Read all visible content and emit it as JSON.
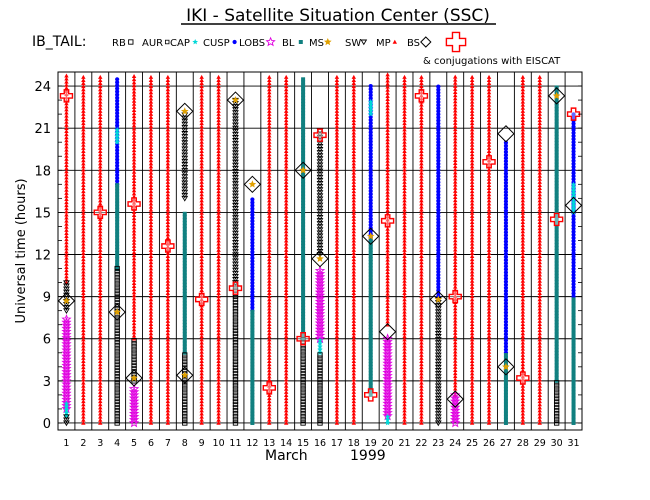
{
  "chart_data": {
    "type": "scatter",
    "title": "IKI - Satellite Situation Center (SSC)",
    "spacecraft": "IB_TAIL:",
    "conjugation_note": "& conjugations with EISCAT",
    "xlabel_month": "March",
    "xlabel_year": "1999",
    "ylabel": "Universal time (hours)",
    "xlim": [
      0.5,
      31.5
    ],
    "ylim": [
      -0.5,
      25
    ],
    "x_ticks": [
      1,
      2,
      3,
      4,
      5,
      6,
      7,
      8,
      9,
      10,
      11,
      12,
      13,
      14,
      15,
      16,
      17,
      18,
      19,
      20,
      21,
      22,
      23,
      24,
      25,
      26,
      27,
      28,
      29,
      30,
      31
    ],
    "y_ticks": [
      0,
      3,
      6,
      9,
      12,
      15,
      18,
      21,
      24
    ],
    "grid": true,
    "legend_position": "top",
    "legend": [
      {
        "key": "RB",
        "label": "RB",
        "color": "#000000",
        "marker": "square-open"
      },
      {
        "key": "AUR",
        "label": "AUR",
        "color": "#000000",
        "marker": "square-open-small"
      },
      {
        "key": "CAP",
        "label": "CAP",
        "color": "#00d8d8",
        "marker": "star"
      },
      {
        "key": "CUSP",
        "label": "CUSP",
        "color": "#0000ff",
        "marker": "dot"
      },
      {
        "key": "LOBS",
        "label": "LOBS",
        "color": "#e000e0",
        "marker": "star-open"
      },
      {
        "key": "BL",
        "label": "BL",
        "color": "#108080",
        "marker": "square-filled"
      },
      {
        "key": "MS",
        "label": "MS",
        "color": "#e0a000",
        "marker": "diamond-star"
      },
      {
        "key": "SW",
        "label": "SW",
        "color": "#000000",
        "marker": "triangle-open"
      },
      {
        "key": "MP",
        "label": "MP",
        "color": "#ff0000",
        "marker": "triangle-filled"
      },
      {
        "key": "BS",
        "label": "BS",
        "color": "#000000",
        "marker": "diamond-open"
      },
      {
        "key": "CONJ",
        "label": "",
        "color": "#ff0000",
        "marker": "cross-open"
      }
    ],
    "segments": [
      {
        "day": 1,
        "spans": [
          [
            "MP",
            10,
            25
          ],
          [
            "SW",
            8,
            10
          ],
          [
            "LOBS",
            1,
            7.5
          ],
          [
            "CAP",
            0.5,
            1.5
          ],
          [
            "SW",
            0,
            0.5
          ]
        ]
      },
      {
        "day": 2,
        "spans": [
          [
            "MP",
            0,
            25
          ]
        ]
      },
      {
        "day": 3,
        "spans": [
          [
            "MP",
            0,
            25
          ]
        ]
      },
      {
        "day": 4,
        "spans": [
          [
            "CUSP",
            17,
            24.5
          ],
          [
            "CAP",
            20,
            21
          ],
          [
            "BL",
            11,
            17
          ],
          [
            "RB",
            0,
            11
          ]
        ]
      },
      {
        "day": 5,
        "spans": [
          [
            "MP",
            6,
            25
          ],
          [
            "RB",
            3,
            6
          ],
          [
            "LOBS",
            0,
            2.5
          ]
        ]
      },
      {
        "day": 6,
        "spans": [
          [
            "MP",
            0,
            25
          ]
        ]
      },
      {
        "day": 7,
        "spans": [
          [
            "MP",
            0,
            25
          ]
        ]
      },
      {
        "day": 8,
        "spans": [
          [
            "SW",
            16,
            22
          ],
          [
            "BL",
            5,
            15
          ],
          [
            "RB",
            0,
            5
          ]
        ]
      },
      {
        "day": 9,
        "spans": [
          [
            "MP",
            0,
            25
          ]
        ]
      },
      {
        "day": 10,
        "spans": [
          [
            "MP",
            0,
            25
          ]
        ]
      },
      {
        "day": 11,
        "spans": [
          [
            "SW",
            10,
            23
          ],
          [
            "RB",
            0,
            10
          ]
        ]
      },
      {
        "day": 12,
        "spans": [
          [
            "CUSP",
            8,
            16
          ],
          [
            "BL",
            0,
            8
          ]
        ]
      },
      {
        "day": 13,
        "spans": [
          [
            "MP",
            0,
            25
          ]
        ]
      },
      {
        "day": 14,
        "spans": [
          [
            "MP",
            0,
            25
          ]
        ]
      },
      {
        "day": 15,
        "spans": [
          [
            "BL",
            6,
            24.5
          ],
          [
            "RB",
            0,
            6
          ]
        ]
      },
      {
        "day": 16,
        "spans": [
          [
            "SW",
            12,
            21
          ],
          [
            "LOBS",
            6,
            11
          ],
          [
            "CAP",
            5,
            6
          ],
          [
            "RB",
            0,
            5
          ]
        ]
      },
      {
        "day": 17,
        "spans": [
          [
            "MP",
            0,
            25
          ]
        ]
      },
      {
        "day": 18,
        "spans": [
          [
            "MP",
            0,
            25
          ]
        ]
      },
      {
        "day": 19,
        "spans": [
          [
            "CUSP",
            13,
            24
          ],
          [
            "CAP",
            22,
            23
          ],
          [
            "BL",
            2,
            13
          ]
        ]
      },
      {
        "day": 20,
        "spans": [
          [
            "MP",
            7,
            25
          ],
          [
            "LOBS",
            0.5,
            6
          ],
          [
            "CAP",
            0,
            0.5
          ]
        ]
      },
      {
        "day": 21,
        "spans": [
          [
            "MP",
            0,
            25
          ]
        ]
      },
      {
        "day": 22,
        "spans": [
          [
            "MP",
            0,
            25
          ]
        ]
      },
      {
        "day": 23,
        "spans": [
          [
            "CUSP",
            9,
            24
          ],
          [
            "SW",
            0,
            9
          ]
        ]
      },
      {
        "day": 24,
        "spans": [
          [
            "MP",
            2,
            25
          ],
          [
            "LOBS",
            0,
            2
          ]
        ]
      },
      {
        "day": 25,
        "spans": [
          [
            "MP",
            0,
            25
          ]
        ]
      },
      {
        "day": 26,
        "spans": [
          [
            "MP",
            0,
            25
          ]
        ]
      },
      {
        "day": 27,
        "spans": [
          [
            "CUSP",
            5,
            20
          ],
          [
            "BL",
            0,
            5
          ]
        ]
      },
      {
        "day": 28,
        "spans": [
          [
            "MP",
            0,
            25
          ]
        ]
      },
      {
        "day": 29,
        "spans": [
          [
            "MP",
            0,
            25
          ]
        ]
      },
      {
        "day": 30,
        "spans": [
          [
            "BL",
            3,
            24
          ],
          [
            "RB",
            0,
            3
          ]
        ]
      },
      {
        "day": 31,
        "spans": [
          [
            "CUSP",
            9,
            22
          ],
          [
            "CAP",
            15,
            17
          ],
          [
            "BL",
            0,
            9
          ]
        ]
      }
    ],
    "bow_shock_crossings": [
      {
        "day": 1,
        "ut": 8.7
      },
      {
        "day": 4,
        "ut": 7.9
      },
      {
        "day": 5,
        "ut": 3.2
      },
      {
        "day": 8,
        "ut": 22.2
      },
      {
        "day": 8,
        "ut": 3.4
      },
      {
        "day": 11,
        "ut": 23.0
      },
      {
        "day": 12,
        "ut": 17.0
      },
      {
        "day": 15,
        "ut": 18.0
      },
      {
        "day": 16,
        "ut": 11.7
      },
      {
        "day": 19,
        "ut": 13.3
      },
      {
        "day": 20,
        "ut": 6.5
      },
      {
        "day": 23,
        "ut": 8.8
      },
      {
        "day": 24,
        "ut": 1.7
      },
      {
        "day": 27,
        "ut": 20.6
      },
      {
        "day": 27,
        "ut": 4.0
      },
      {
        "day": 30,
        "ut": 23.3
      },
      {
        "day": 31,
        "ut": 15.5
      }
    ],
    "magnetosheath_points": [
      {
        "day": 1,
        "ut": 8.7
      },
      {
        "day": 4,
        "ut": 7.9
      },
      {
        "day": 5,
        "ut": 3.2
      },
      {
        "day": 8,
        "ut": 22.2
      },
      {
        "day": 8,
        "ut": 3.4
      },
      {
        "day": 11,
        "ut": 23.0
      },
      {
        "day": 12,
        "ut": 17.0
      },
      {
        "day": 15,
        "ut": 18.0
      },
      {
        "day": 16,
        "ut": 11.7
      },
      {
        "day": 19,
        "ut": 13.3
      },
      {
        "day": 23,
        "ut": 8.8
      },
      {
        "day": 27,
        "ut": 4.0
      },
      {
        "day": 30,
        "ut": 23.3
      }
    ],
    "conjugations": [
      {
        "day": 1,
        "ut": 23.3
      },
      {
        "day": 3,
        "ut": 15.0
      },
      {
        "day": 5,
        "ut": 15.6
      },
      {
        "day": 7,
        "ut": 12.6
      },
      {
        "day": 9,
        "ut": 8.8
      },
      {
        "day": 11,
        "ut": 9.6
      },
      {
        "day": 13,
        "ut": 2.5
      },
      {
        "day": 15,
        "ut": 6.0
      },
      {
        "day": 16,
        "ut": 20.5
      },
      {
        "day": 19,
        "ut": 2.0
      },
      {
        "day": 20,
        "ut": 14.4
      },
      {
        "day": 22,
        "ut": 23.3
      },
      {
        "day": 24,
        "ut": 9.0
      },
      {
        "day": 26,
        "ut": 18.6
      },
      {
        "day": 28,
        "ut": 3.2
      },
      {
        "day": 30,
        "ut": 14.5
      },
      {
        "day": 31,
        "ut": 22.0
      }
    ]
  }
}
